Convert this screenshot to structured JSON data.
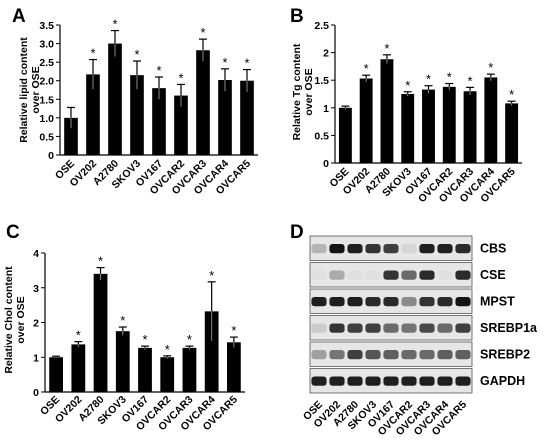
{
  "chart_data": [
    {
      "panel": "A",
      "type": "bar",
      "ylabel_lines": [
        "Relative lipid content",
        "over OSE"
      ],
      "categories": [
        "OSE",
        "OV202",
        "A2780",
        "SKOV3",
        "OV167",
        "OVCAR2",
        "OVCAR3",
        "OVCAR4",
        "OVCAR5"
      ],
      "values": [
        1.0,
        2.17,
        3.0,
        2.15,
        1.8,
        1.6,
        2.82,
        2.02,
        2.0
      ],
      "errors": [
        0.28,
        0.4,
        0.35,
        0.38,
        0.3,
        0.3,
        0.3,
        0.3,
        0.3
      ],
      "significant": [
        false,
        true,
        true,
        true,
        true,
        true,
        true,
        true,
        true
      ],
      "star_label": "*",
      "ylim": [
        0,
        3.5
      ],
      "yticks": [
        "0",
        "0.5",
        "1.0",
        "1.5",
        "2.0",
        "2.5",
        "3.0",
        "3.5"
      ],
      "ytick_values": [
        0,
        0.5,
        1.0,
        1.5,
        2.0,
        2.5,
        3.0,
        3.5
      ]
    },
    {
      "panel": "B",
      "type": "bar",
      "ylabel_lines": [
        "Relative Tg content",
        "over OSE"
      ],
      "categories": [
        "OSE",
        "OV202",
        "A2780",
        "SKOV3",
        "OV167",
        "OVCAR2",
        "OVCAR3",
        "OVCAR4",
        "OVCAR5"
      ],
      "values": [
        1.0,
        1.53,
        1.88,
        1.25,
        1.33,
        1.38,
        1.3,
        1.55,
        1.08
      ],
      "errors": [
        0.03,
        0.06,
        0.08,
        0.04,
        0.07,
        0.06,
        0.07,
        0.06,
        0.04
      ],
      "significant": [
        false,
        true,
        true,
        true,
        true,
        true,
        true,
        true,
        true
      ],
      "star_label": "*",
      "ylim": [
        0,
        2.5
      ],
      "yticks": [
        "0",
        "0.5",
        "1",
        "1.5",
        "2",
        "2.5"
      ],
      "ytick_values": [
        0,
        0.5,
        1,
        1.5,
        2,
        2.5
      ]
    },
    {
      "panel": "C",
      "type": "bar",
      "ylabel_lines": [
        "Relative Chol content",
        "over OSE"
      ],
      "categories": [
        "OSE",
        "OV202",
        "A2780",
        "SKOV3",
        "OV167",
        "OVCAR2",
        "OVCAR3",
        "OVCAR4",
        "OVCAR5"
      ],
      "values": [
        1.0,
        1.37,
        3.4,
        1.75,
        1.27,
        1.0,
        1.27,
        2.32,
        1.43
      ],
      "errors": [
        0.03,
        0.08,
        0.18,
        0.12,
        0.05,
        0.04,
        0.05,
        0.85,
        0.15
      ],
      "significant": [
        false,
        true,
        true,
        true,
        true,
        true,
        true,
        true,
        true
      ],
      "star_label": "*",
      "ylim": [
        0,
        4
      ],
      "yticks": [
        "0",
        "1",
        "2",
        "3",
        "4"
      ],
      "ytick_values": [
        0,
        1,
        2,
        3,
        4
      ]
    }
  ],
  "blot": {
    "panel": "D",
    "rows": [
      {
        "label": "CBS",
        "intensity": [
          0.25,
          1.0,
          0.95,
          0.85,
          0.8,
          0.1,
          0.95,
          0.95,
          0.9
        ]
      },
      {
        "label": "CSE",
        "intensity": [
          0.05,
          0.3,
          0.05,
          0.05,
          0.85,
          0.6,
          0.9,
          0.05,
          0.9
        ]
      },
      {
        "label": "MPST",
        "intensity": [
          0.95,
          0.95,
          0.95,
          0.9,
          0.9,
          0.45,
          0.85,
          0.9,
          1.0
        ]
      },
      {
        "label": "SREBP1a",
        "intensity": [
          0.15,
          0.85,
          0.8,
          0.8,
          0.6,
          0.55,
          0.75,
          0.6,
          0.8
        ]
      },
      {
        "label": "SREBP2",
        "intensity": [
          0.35,
          0.55,
          0.8,
          0.7,
          0.65,
          0.6,
          0.6,
          0.65,
          0.65
        ]
      },
      {
        "label": "GAPDH",
        "intensity": [
          0.95,
          0.95,
          0.95,
          0.95,
          0.95,
          0.95,
          0.95,
          0.95,
          0.95
        ]
      }
    ],
    "lanes": [
      "OSE",
      "OV202",
      "A2780",
      "SKOV3",
      "OV167",
      "OVCAR2",
      "OVCAR3",
      "OVCAR4",
      "OVCAR5"
    ]
  }
}
